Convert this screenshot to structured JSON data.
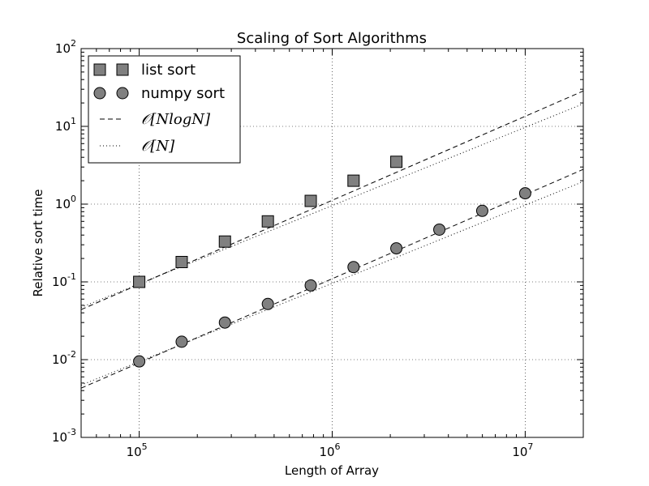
{
  "chart_data": {
    "type": "scatter",
    "title": "Scaling of Sort Algorithms",
    "xlabel": "Length of Array",
    "ylabel": "Relative sort time",
    "xscale": "log",
    "yscale": "log",
    "xlim": [
      50000,
      20000000
    ],
    "ylim": [
      0.001,
      100
    ],
    "grid": true,
    "legend_position": "top-left",
    "x_ticks": [
      {
        "base": "10",
        "exp": "5",
        "value": 100000
      },
      {
        "base": "10",
        "exp": "6",
        "value": 1000000
      },
      {
        "base": "10",
        "exp": "7",
        "value": 10000000
      }
    ],
    "y_ticks": [
      {
        "base": "10",
        "exp": "-3",
        "value": 0.001
      },
      {
        "base": "10",
        "exp": "-2",
        "value": 0.01
      },
      {
        "base": "10",
        "exp": "-1",
        "value": 0.1
      },
      {
        "base": "10",
        "exp": "0",
        "value": 1
      },
      {
        "base": "10",
        "exp": "1",
        "value": 10
      },
      {
        "base": "10",
        "exp": "2",
        "value": 100
      }
    ],
    "series": [
      {
        "name": "list sort",
        "marker": "square",
        "color": "#808080",
        "x": [
          100000,
          166000,
          278000,
          464000,
          774000,
          1290000,
          2150000
        ],
        "y": [
          0.1,
          0.18,
          0.33,
          0.6,
          1.1,
          2.0,
          3.5
        ]
      },
      {
        "name": "numpy sort",
        "marker": "circle",
        "color": "#808080",
        "x": [
          100000,
          166000,
          278000,
          464000,
          774000,
          1290000,
          2150000,
          3590000,
          5990000,
          10000000
        ],
        "y": [
          0.0095,
          0.017,
          0.03,
          0.052,
          0.09,
          0.155,
          0.27,
          0.47,
          0.82,
          1.38
        ]
      }
    ],
    "reference_lines": [
      {
        "name": "O[N log N]",
        "style": "dashed",
        "color": "#000000",
        "x": [
          50000,
          20000000
        ],
        "y": [
          0.044,
          28.5
        ]
      },
      {
        "name": "O[N]",
        "style": "dotted",
        "color": "#000000",
        "x": [
          50000,
          20000000
        ],
        "y": [
          0.047,
          19.5
        ]
      },
      {
        "name": "O[N log N]",
        "style": "dashed",
        "color": "#000000",
        "x": [
          50000,
          20000000
        ],
        "y": [
          0.0043,
          2.8
        ]
      },
      {
        "name": "O[N]",
        "style": "dotted",
        "color": "#000000",
        "x": [
          50000,
          20000000
        ],
        "y": [
          0.0047,
          1.95
        ]
      }
    ],
    "legend": [
      {
        "label": "list sort",
        "kind": "marker",
        "marker": "square"
      },
      {
        "label": "numpy sort",
        "kind": "marker",
        "marker": "circle"
      },
      {
        "label_prefix": "𝒪",
        "label_main": "[NlogN]",
        "kind": "line",
        "style": "dashed"
      },
      {
        "label_prefix": "𝒪",
        "label_main": "[N]",
        "kind": "line",
        "style": "dotted"
      }
    ]
  }
}
